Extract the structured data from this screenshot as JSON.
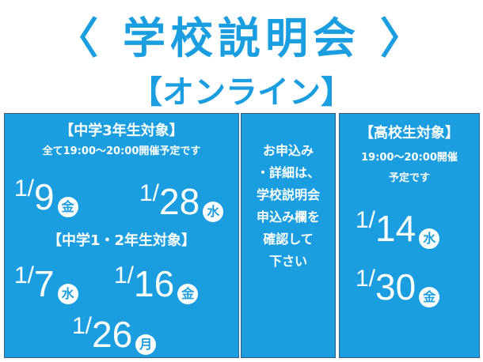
{
  "title": "〈 学校説明会 〉",
  "subtitle": "【オンライン】",
  "colors": {
    "brand_blue": "#1a9ee0"
  },
  "left": {
    "header1": "【中学3年生対象】",
    "note": "全て19:00～20:00開催予定です",
    "dates1": [
      {
        "month": "1/",
        "day": "9",
        "weekday": "金"
      },
      {
        "month": "1/",
        "day": "28",
        "weekday": "水"
      }
    ],
    "header2": "【中学1・2年生対象】",
    "dates2": [
      {
        "month": "1/",
        "day": "7",
        "weekday": "水"
      },
      {
        "month": "1/",
        "day": "16",
        "weekday": "金"
      },
      {
        "month": "1/",
        "day": "26",
        "weekday": "月"
      }
    ]
  },
  "middle": {
    "lines": [
      "お申込み",
      "・詳細は、",
      "学校説明会",
      "申込み欄を",
      "確認して",
      "下さい"
    ]
  },
  "right": {
    "header": "【高校生対象】",
    "note1": "19:00～20:00開催",
    "note2": "予定です",
    "dates": [
      {
        "month": "1/",
        "day": "14",
        "weekday": "水"
      },
      {
        "month": "1/",
        "day": "30",
        "weekday": "金"
      }
    ]
  }
}
